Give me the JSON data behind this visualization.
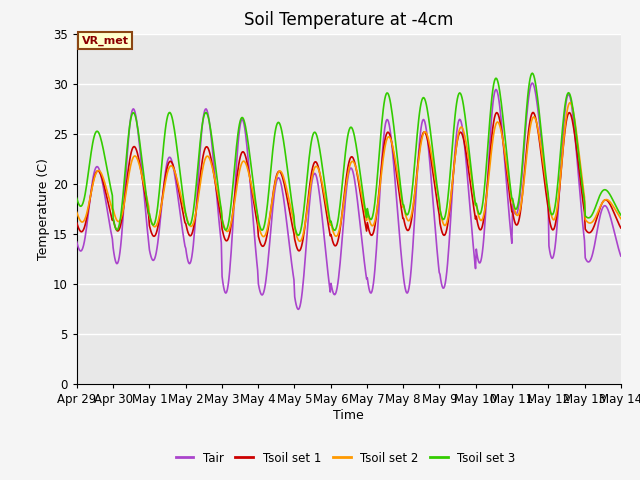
{
  "title": "Soil Temperature at -4cm",
  "xlabel": "Time",
  "ylabel": "Temperature (C)",
  "ylim": [
    0,
    35
  ],
  "yticks": [
    0,
    5,
    10,
    15,
    20,
    25,
    30,
    35
  ],
  "xlim_days": [
    0,
    15
  ],
  "x_tick_labels": [
    "Apr 29",
    "Apr 30",
    "May 1",
    "May 2",
    "May 3",
    "May 4",
    "May 5",
    "May 6",
    "May 7",
    "May 8",
    "May 9",
    "May 10",
    "May 11",
    "May 12",
    "May 13",
    "May 14"
  ],
  "x_tick_positions": [
    0,
    1,
    2,
    3,
    4,
    5,
    6,
    7,
    8,
    9,
    10,
    11,
    12,
    13,
    14,
    15
  ],
  "series_colors": [
    "#aa44cc",
    "#cc0000",
    "#ff9900",
    "#33cc00"
  ],
  "series_labels": [
    "Tair",
    "Tsoil set 1",
    "Tsoil set 2",
    "Tsoil set 3"
  ],
  "annotation_text": "VR_met",
  "background_inner": "#e8e8e8",
  "background_outer": "#f5f5f5",
  "grid_color": "#ffffff",
  "title_fontsize": 12,
  "label_fontsize": 9,
  "tick_fontsize": 8.5
}
